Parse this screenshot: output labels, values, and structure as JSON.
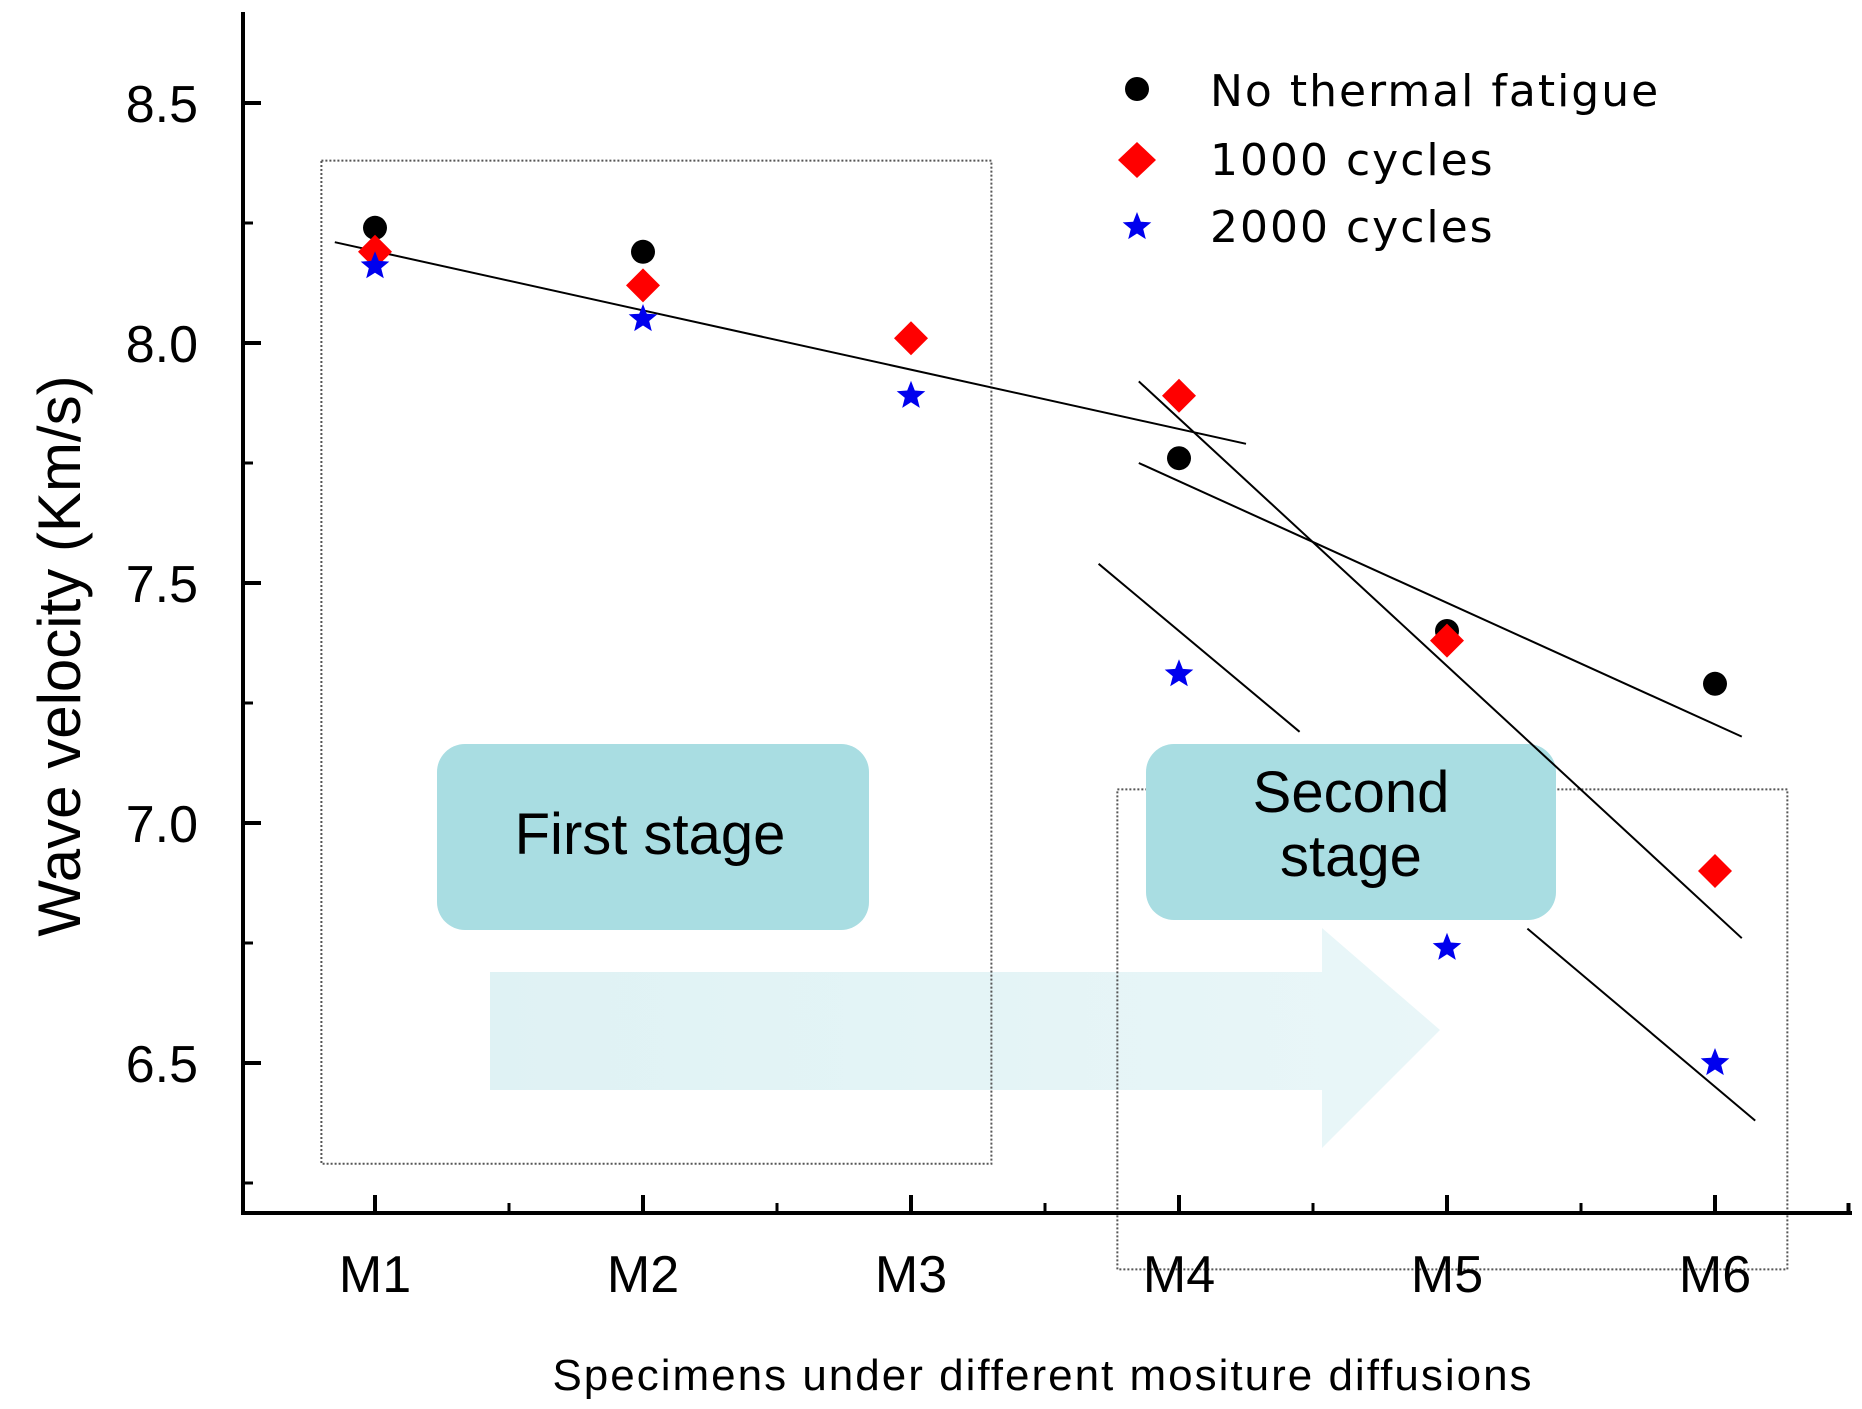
{
  "chart_data": {
    "type": "scatter",
    "title": "",
    "xlabel": "Specimens under different mositure diffusions",
    "ylabel": "Wave velocity (Km/s)",
    "categories": [
      "M1",
      "M2",
      "M3",
      "M4",
      "M5",
      "M6"
    ],
    "ylim": [
      6.19,
      8.7
    ],
    "yticks": [
      6.5,
      7.0,
      7.5,
      8.0,
      8.5
    ],
    "ytick_labels": [
      "6.5",
      "7.0",
      "7.5",
      "8.0",
      "8.5"
    ],
    "series": [
      {
        "name": "No thermal fatigue",
        "marker": "circle",
        "color": "#000000",
        "values": [
          8.24,
          8.19,
          null,
          7.76,
          7.4,
          7.29
        ]
      },
      {
        "name": "1000 cycles",
        "marker": "diamond",
        "color": "#ff0000",
        "values": [
          8.19,
          8.12,
          8.01,
          7.89,
          7.38,
          6.9
        ]
      },
      {
        "name": "2000 cycles",
        "marker": "star",
        "color": "#0000ee",
        "values": [
          8.16,
          8.05,
          7.89,
          7.31,
          6.74,
          6.5
        ]
      }
    ],
    "trend_lines": [
      {
        "x": [
          0.85,
          4.25
        ],
        "y": [
          8.21,
          7.79
        ]
      },
      {
        "x": [
          3.85,
          6.1
        ],
        "y": [
          7.92,
          6.76
        ]
      },
      {
        "x": [
          3.85,
          6.1
        ],
        "y": [
          7.75,
          7.18
        ]
      },
      {
        "x": [
          3.7,
          4.45
        ],
        "y": [
          7.54,
          7.19
        ]
      },
      {
        "x": [
          5.3,
          6.15
        ],
        "y": [
          6.78,
          6.38
        ]
      }
    ],
    "stage_boxes": [
      {
        "label": "First stage",
        "x": [
          0.8,
          3.3
        ],
        "y": [
          6.29,
          8.38
        ]
      },
      {
        "label": "Second stage",
        "x": [
          3.77,
          6.27
        ],
        "y": [
          6.07,
          7.07
        ]
      }
    ],
    "annotations": {
      "first_stage": "First stage",
      "second_stage_line1": "Second",
      "second_stage_line2": "stage"
    },
    "legend_position": "top-right",
    "grid": false
  }
}
